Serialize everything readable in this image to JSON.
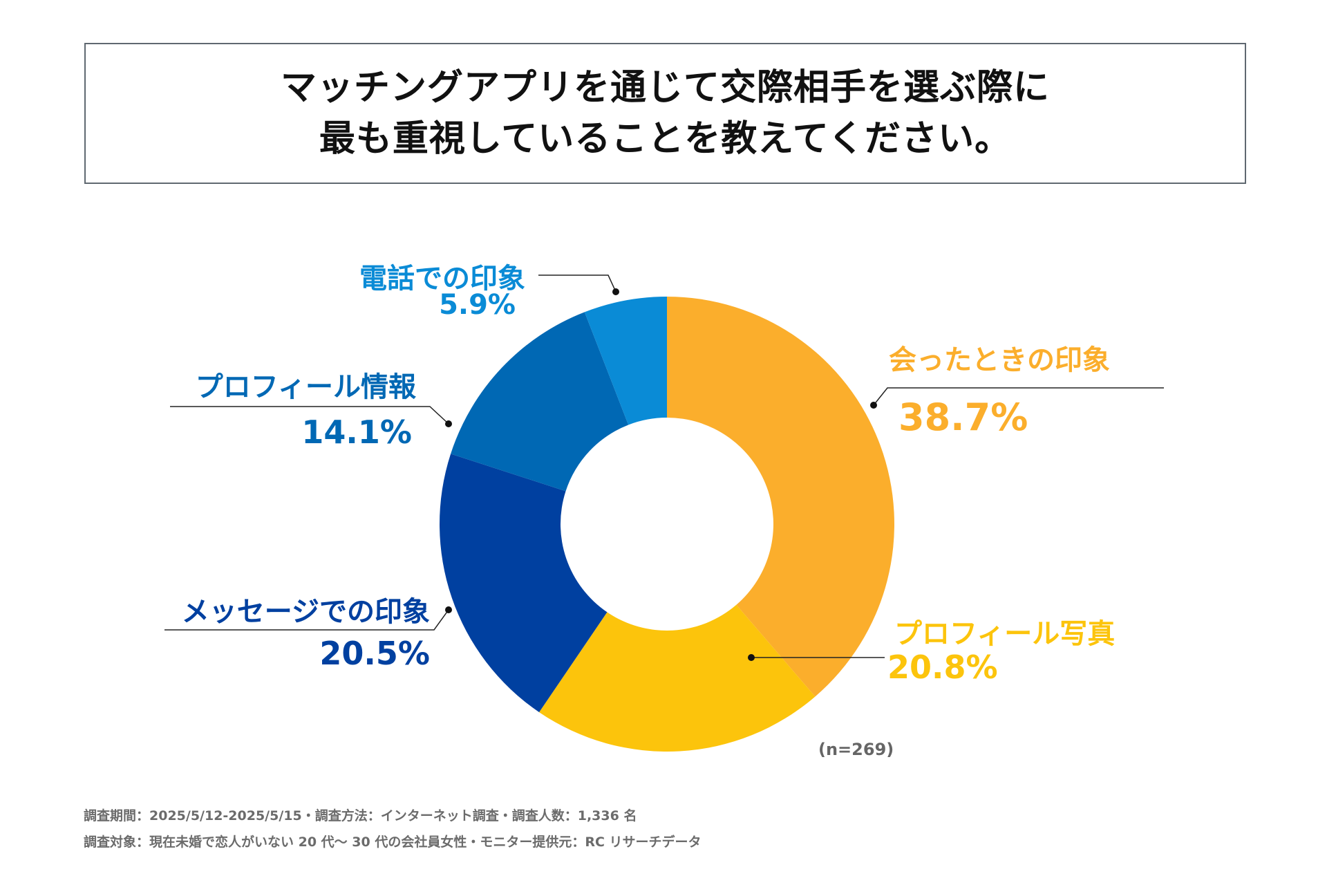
{
  "title": {
    "line1": "マッチングアプリを通じて交際相手を選ぶ際に",
    "line2": "最も重視していることを教えてください。"
  },
  "chart_data": {
    "type": "pie",
    "donut": true,
    "start": "top, clockwise",
    "categories": [
      "会ったときの印象",
      "プロフィール写真",
      "メッセージでの印象",
      "プロフィール情報",
      "電話での印象"
    ],
    "values": [
      38.7,
      20.8,
      20.5,
      14.1,
      5.9
    ],
    "labels": [
      "38.7%",
      "20.8%",
      "20.5%",
      "14.1%",
      "5.9%"
    ],
    "colors": [
      "#fbae2c",
      "#fcc40c",
      "#0040a0",
      "#0068b4",
      "#0a8bd6"
    ],
    "sample_note": "(n=269)"
  },
  "footer": {
    "line1": "調査期間：2025/5/12-2025/5/15・調査方法：インターネット調査・調査人数：1,336 名",
    "line2": "調査対象：現在未婚で恋人がいない 20 代～ 30 代の会社員女性・モニター提供元：RC リサーチデータ"
  }
}
